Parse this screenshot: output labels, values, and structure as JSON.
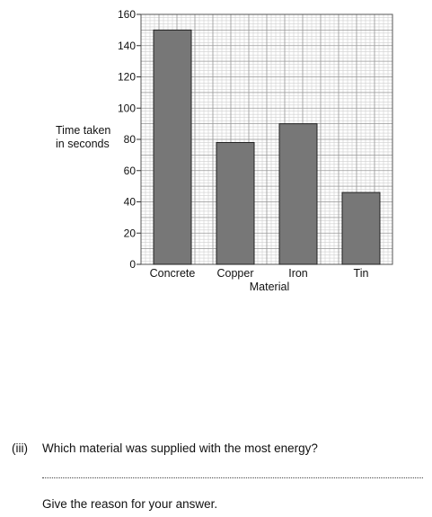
{
  "chart_data": {
    "type": "bar",
    "categories": [
      "Concrete",
      "Copper",
      "Iron",
      "Tin"
    ],
    "values": [
      150,
      78,
      90,
      46
    ],
    "ylabel": "Time taken in seconds",
    "ylabel_lines": [
      "Time taken",
      "in seconds"
    ],
    "xlabel": "Material",
    "ylim": [
      0,
      160
    ],
    "yticks": [
      0,
      20,
      40,
      60,
      80,
      100,
      120,
      140,
      160
    ],
    "grid": true,
    "bar_color": "#777777"
  },
  "question": {
    "number": "(iii)",
    "text": "Which material was supplied with the most energy?",
    "answer_line": "........................................................................................................................",
    "reason_prompt": "Give the reason for your answer."
  }
}
